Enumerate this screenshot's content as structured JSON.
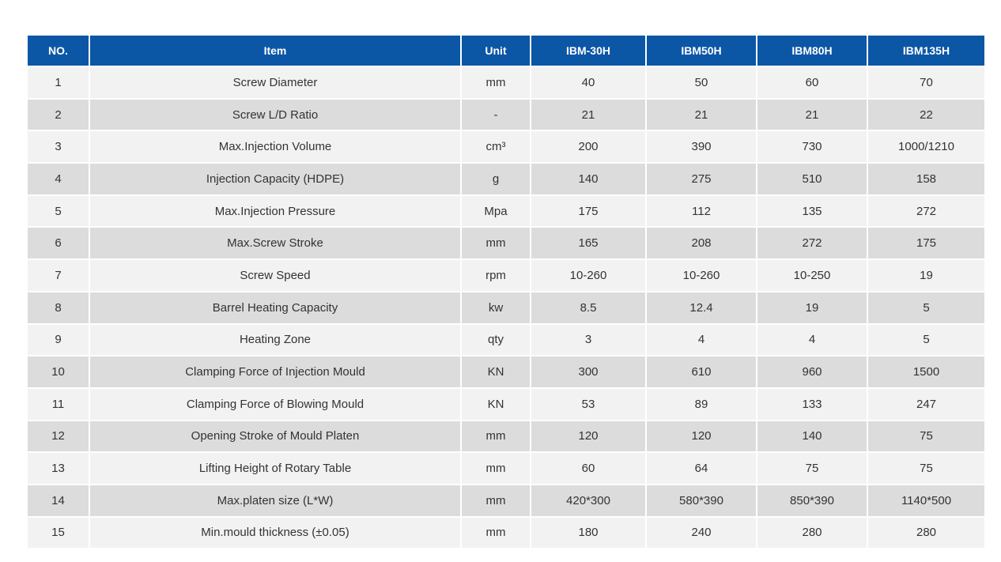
{
  "headers": [
    "NO.",
    "Item",
    "Unit",
    "IBM-30H",
    "IBM50H",
    "IBM80H",
    "IBM135H"
  ],
  "rows": [
    [
      "1",
      "Screw Diameter",
      "mm",
      "40",
      "50",
      "60",
      "70"
    ],
    [
      "2",
      "Screw L/D Ratio",
      "-",
      "21",
      "21",
      "21",
      "22"
    ],
    [
      "3",
      "Max.Injection Volume",
      "cm³",
      "200",
      "390",
      "730",
      "1000/1210"
    ],
    [
      "4",
      "Injection Capacity (HDPE)",
      "g",
      "140",
      "275",
      "510",
      "158"
    ],
    [
      "5",
      "Max.Injection Pressure",
      "Mpa",
      "175",
      "112",
      "135",
      "272"
    ],
    [
      "6",
      "Max.Screw Stroke",
      "mm",
      "165",
      "208",
      "272",
      "175"
    ],
    [
      "7",
      "Screw Speed",
      "rpm",
      "10-260",
      "10-260",
      "10-250",
      "19"
    ],
    [
      "8",
      "Barrel Heating Capacity",
      "kw",
      "8.5",
      "12.4",
      "19",
      "5"
    ],
    [
      "9",
      "Heating Zone",
      "qty",
      "3",
      "4",
      "4",
      "5"
    ],
    [
      "10",
      "Clamping Force of Injection Mould",
      "KN",
      "300",
      "610",
      "960",
      "1500"
    ],
    [
      "11",
      "Clamping Force of Blowing Mould",
      "KN",
      "53",
      "89",
      "133",
      "247"
    ],
    [
      "12",
      "Opening Stroke of Mould Platen",
      "mm",
      "120",
      "120",
      "140",
      "75"
    ],
    [
      "13",
      "Lifting Height of Rotary Table",
      "mm",
      "60",
      "64",
      "75",
      "75"
    ],
    [
      "14",
      "Max.platen size (L*W)",
      "mm",
      "420*300",
      "580*390",
      "850*390",
      "1140*500"
    ],
    [
      "15",
      "Min.mould thickness (±0.05)",
      "mm",
      "180",
      "240",
      "280",
      "280"
    ]
  ],
  "colors": {
    "header_bg": "#0c56a6",
    "row_light": "#f2f2f2",
    "row_dark": "#dcdcdc"
  }
}
